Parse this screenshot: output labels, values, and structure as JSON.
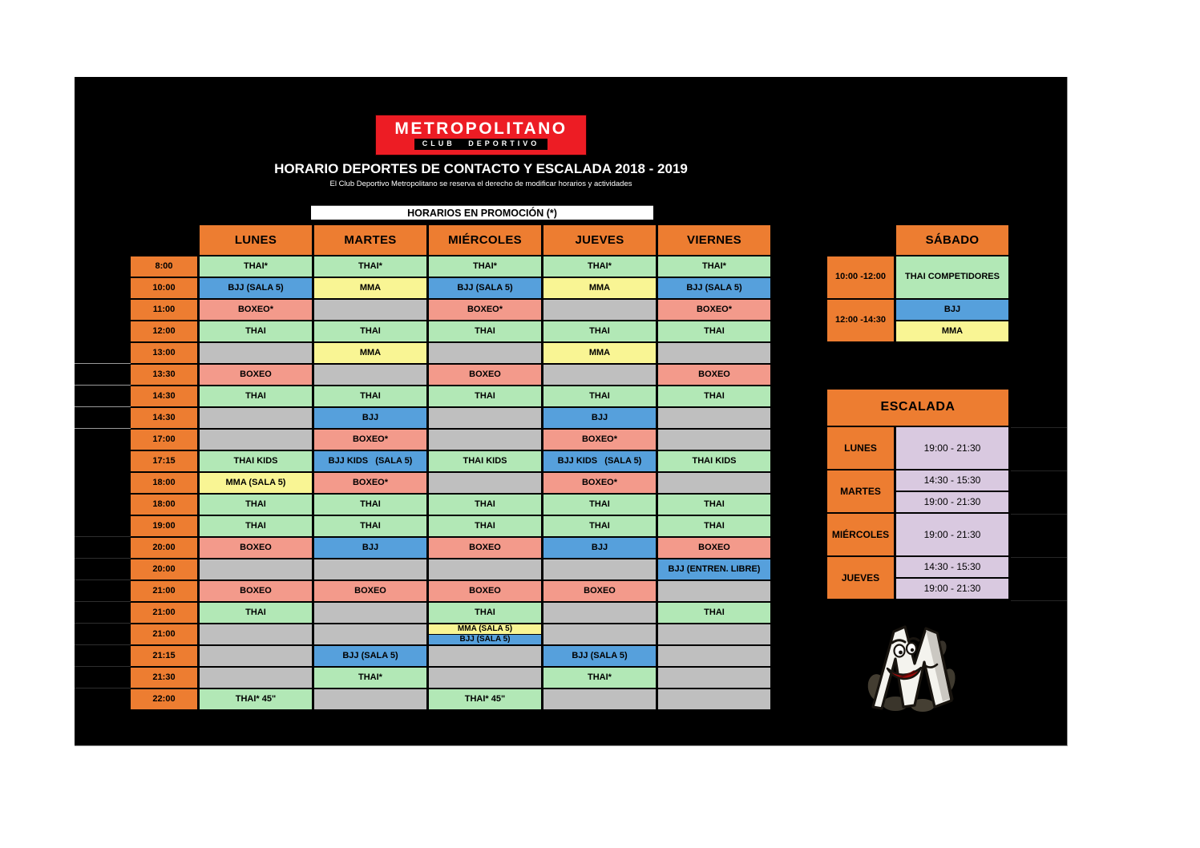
{
  "logo": {
    "title": "METROPOLITANO",
    "strip": "CLUB DEPORTIVO"
  },
  "header": {
    "title": "HORARIO DEPORTES DE CONTACTO Y ESCALADA 2018 - 2019",
    "subtitle": "El Club Deportivo Metropolitano se reserva el derecho de modificar horarios y actividades",
    "promo": "HORARIOS EN PROMOCIÓN (*)"
  },
  "colors": {
    "orange": "#ed7d31",
    "green": "#b2e8b6",
    "blue": "#56a0dc",
    "yellow": "#f9f594",
    "salmon": "#f39a8b",
    "gray": "#bfbfbf",
    "purple": "#d9c9e0",
    "logo_red": "#ed1c24"
  },
  "main_table": {
    "days": [
      "LUNES",
      "MARTES",
      "MIÉRCOLES",
      "JUEVES",
      "VIERNES"
    ],
    "rows": [
      {
        "time": "8:00",
        "cells": [
          {
            "t": "THAI*",
            "c": "green"
          },
          {
            "t": "THAI*",
            "c": "green"
          },
          {
            "t": "THAI*",
            "c": "green"
          },
          {
            "t": "THAI*",
            "c": "green"
          },
          {
            "t": "THAI*",
            "c": "green"
          }
        ]
      },
      {
        "time": "10:00",
        "cells": [
          {
            "t": "BJJ (SALA 5)",
            "c": "blue"
          },
          {
            "t": "MMA",
            "c": "yellow"
          },
          {
            "t": "BJJ (SALA 5)",
            "c": "blue"
          },
          {
            "t": "MMA",
            "c": "yellow"
          },
          {
            "t": "BJJ (SALA 5)",
            "c": "blue"
          }
        ]
      },
      {
        "time": "11:00",
        "cells": [
          {
            "t": "BOXEO*",
            "c": "salmon"
          },
          {
            "t": "",
            "c": "gray"
          },
          {
            "t": "BOXEO*",
            "c": "salmon"
          },
          {
            "t": "",
            "c": "gray"
          },
          {
            "t": "BOXEO*",
            "c": "salmon"
          }
        ]
      },
      {
        "time": "12:00",
        "cells": [
          {
            "t": "THAI",
            "c": "green"
          },
          {
            "t": "THAI",
            "c": "green"
          },
          {
            "t": "THAI",
            "c": "green"
          },
          {
            "t": "THAI",
            "c": "green"
          },
          {
            "t": "THAI",
            "c": "green"
          }
        ]
      },
      {
        "time": "13:00",
        "cells": [
          {
            "t": "",
            "c": "gray"
          },
          {
            "t": "MMA",
            "c": "yellow"
          },
          {
            "t": "",
            "c": "gray"
          },
          {
            "t": "MMA",
            "c": "yellow"
          },
          {
            "t": "",
            "c": "gray"
          }
        ]
      },
      {
        "time": "13:30",
        "cells": [
          {
            "t": "BOXEO",
            "c": "salmon"
          },
          {
            "t": "",
            "c": "gray"
          },
          {
            "t": "BOXEO",
            "c": "salmon"
          },
          {
            "t": "",
            "c": "gray"
          },
          {
            "t": "BOXEO",
            "c": "salmon"
          }
        ]
      },
      {
        "time": "14:30",
        "cells": [
          {
            "t": "THAI",
            "c": "green"
          },
          {
            "t": "THAI",
            "c": "green"
          },
          {
            "t": "THAI",
            "c": "green"
          },
          {
            "t": "THAI",
            "c": "green"
          },
          {
            "t": "THAI",
            "c": "green"
          }
        ]
      },
      {
        "time": "14:30",
        "cells": [
          {
            "t": "",
            "c": "gray"
          },
          {
            "t": "BJJ",
            "c": "blue"
          },
          {
            "t": "",
            "c": "gray"
          },
          {
            "t": "BJJ",
            "c": "blue"
          },
          {
            "t": "",
            "c": "gray"
          }
        ]
      },
      {
        "time": "17:00",
        "cells": [
          {
            "t": "",
            "c": "gray"
          },
          {
            "t": "BOXEO*",
            "c": "salmon"
          },
          {
            "t": "",
            "c": "gray"
          },
          {
            "t": "BOXEO*",
            "c": "salmon"
          },
          {
            "t": "",
            "c": "gray"
          }
        ]
      },
      {
        "time": "17:15",
        "cells": [
          {
            "t": "THAI KIDS",
            "c": "green"
          },
          {
            "t": "BJJ KIDS   (SALA 5)",
            "c": "blue"
          },
          {
            "t": "THAI KIDS",
            "c": "green"
          },
          {
            "t": "BJJ KIDS   (SALA 5)",
            "c": "blue"
          },
          {
            "t": "THAI KIDS",
            "c": "green"
          }
        ]
      },
      {
        "time": "18:00",
        "cells": [
          {
            "t": "MMA (SALA 5)",
            "c": "yellow"
          },
          {
            "t": "BOXEO*",
            "c": "salmon"
          },
          {
            "t": "",
            "c": "gray"
          },
          {
            "t": "BOXEO*",
            "c": "salmon"
          },
          {
            "t": "",
            "c": "gray"
          }
        ]
      },
      {
        "time": "18:00",
        "cells": [
          {
            "t": "THAI",
            "c": "green"
          },
          {
            "t": "THAI",
            "c": "green"
          },
          {
            "t": "THAI",
            "c": "green"
          },
          {
            "t": "THAI",
            "c": "green"
          },
          {
            "t": "THAI",
            "c": "green"
          }
        ]
      },
      {
        "time": "19:00",
        "cells": [
          {
            "t": "THAI",
            "c": "green"
          },
          {
            "t": "THAI",
            "c": "green"
          },
          {
            "t": "THAI",
            "c": "green"
          },
          {
            "t": "THAI",
            "c": "green"
          },
          {
            "t": "THAI",
            "c": "green"
          }
        ]
      },
      {
        "time": "20:00",
        "cells": [
          {
            "t": "BOXEO",
            "c": "salmon"
          },
          {
            "t": "BJJ",
            "c": "blue"
          },
          {
            "t": "BOXEO",
            "c": "salmon"
          },
          {
            "t": "BJJ",
            "c": "blue"
          },
          {
            "t": "BOXEO",
            "c": "salmon"
          }
        ]
      },
      {
        "time": "20:00",
        "cells": [
          {
            "t": "",
            "c": "gray"
          },
          {
            "t": "",
            "c": "gray"
          },
          {
            "t": "",
            "c": "gray"
          },
          {
            "t": "",
            "c": "gray"
          },
          {
            "t": "BJJ (ENTREN. LIBRE)",
            "c": "blue"
          }
        ]
      },
      {
        "time": "21:00",
        "cells": [
          {
            "t": "BOXEO",
            "c": "salmon"
          },
          {
            "t": "BOXEO",
            "c": "salmon"
          },
          {
            "t": "BOXEO",
            "c": "salmon"
          },
          {
            "t": "BOXEO",
            "c": "salmon"
          },
          {
            "t": "",
            "c": "gray"
          }
        ]
      },
      {
        "time": "21:00",
        "cells": [
          {
            "t": "THAI",
            "c": "green"
          },
          {
            "t": "",
            "c": "gray"
          },
          {
            "t": "THAI",
            "c": "green"
          },
          {
            "t": "",
            "c": "gray"
          },
          {
            "t": "THAI",
            "c": "green"
          }
        ]
      },
      {
        "time": "21:00",
        "cells": [
          {
            "t": "",
            "c": "gray"
          },
          {
            "t": "",
            "c": "gray"
          },
          {
            "split": [
              {
                "t": "MMA (SALA 5)",
                "c": "yellow"
              },
              {
                "t": "BJJ (SALA 5)",
                "c": "blue"
              }
            ]
          },
          {
            "t": "",
            "c": "gray"
          },
          {
            "t": "",
            "c": "gray"
          }
        ]
      },
      {
        "time": "21:15",
        "cells": [
          {
            "t": "",
            "c": "gray"
          },
          {
            "t": "BJJ (SALA 5)",
            "c": "blue"
          },
          {
            "t": "",
            "c": "gray"
          },
          {
            "t": "BJJ (SALA 5)",
            "c": "blue"
          },
          {
            "t": "",
            "c": "gray"
          }
        ]
      },
      {
        "time": "21:30",
        "cells": [
          {
            "t": "",
            "c": "gray"
          },
          {
            "t": "THAI*",
            "c": "green"
          },
          {
            "t": "",
            "c": "gray"
          },
          {
            "t": "THAI*",
            "c": "green"
          },
          {
            "t": "",
            "c": "gray"
          }
        ]
      },
      {
        "time": "22:00",
        "cells": [
          {
            "t": "THAI* 45\"",
            "c": "green"
          },
          {
            "t": "",
            "c": "gray"
          },
          {
            "t": "THAI* 45\"",
            "c": "green"
          },
          {
            "t": "",
            "c": "gray"
          },
          {
            "t": "",
            "c": "gray"
          }
        ]
      }
    ]
  },
  "saturday": {
    "header": "SÁBADO",
    "slot1": {
      "time": "10:00 -12:00",
      "entry": {
        "t": "THAI COMPETIDORES",
        "c": "green"
      }
    },
    "slot2": {
      "time": "12:00 -14:30",
      "entries": [
        {
          "t": "BJJ",
          "c": "blue"
        },
        {
          "t": "MMA",
          "c": "yellow"
        }
      ]
    }
  },
  "escalada": {
    "header": "ESCALADA",
    "rows": [
      {
        "day": "LUNES",
        "times": [
          "19:00 - 21:30"
        ]
      },
      {
        "day": "MARTES",
        "times": [
          "14:30 - 15:30",
          "19:00 - 21:30"
        ]
      },
      {
        "day": "MIÉRCOLES",
        "times": [
          "19:00 - 21:30"
        ]
      },
      {
        "day": "JUEVES",
        "times": [
          "14:30 - 15:30",
          "19:00 - 21:30"
        ]
      }
    ]
  }
}
